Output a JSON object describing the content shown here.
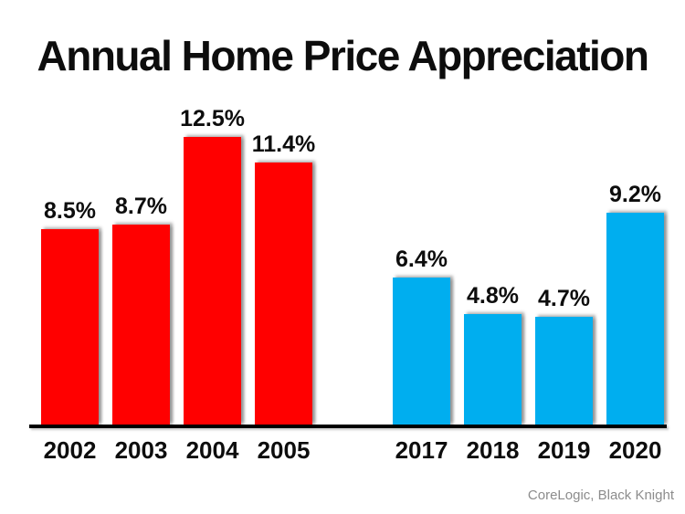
{
  "title": "Annual Home Price Appreciation",
  "source": "CoreLogic, Black Knight",
  "colors": {
    "red_bar": "#FF0000",
    "blue_bar": "#00AEEF",
    "axis": "#000000",
    "label_text": "#0d0d0d",
    "source_text": "#8c8c8c"
  },
  "chart_data": {
    "type": "bar",
    "title": "Annual Home Price Appreciation",
    "xlabel": "",
    "ylabel": "",
    "unit": "%",
    "ylim": [
      0,
      14
    ],
    "grid": false,
    "legend": "none",
    "axis_style": "black x-axis baseline only, no y-axis, no gridlines, value labels above bars",
    "categories": [
      "2002",
      "2003",
      "2004",
      "2005",
      "2017",
      "2018",
      "2019",
      "2020"
    ],
    "series": [
      {
        "name": "2002-2005",
        "color": "#FF0000",
        "years": [
          "2002",
          "2003",
          "2004",
          "2005"
        ],
        "values": [
          8.5,
          8.7,
          12.5,
          11.4
        ],
        "labels": [
          "8.5%",
          "8.7%",
          "12.5%",
          "11.4%"
        ]
      },
      {
        "name": "2017-2020",
        "color": "#00AEEF",
        "years": [
          "2017",
          "2018",
          "2019",
          "2020"
        ],
        "values": [
          6.4,
          4.8,
          4.7,
          9.2
        ],
        "labels": [
          "6.4%",
          "4.8%",
          "4.7%",
          "9.2%"
        ]
      }
    ],
    "source": "CoreLogic, Black Knight"
  }
}
